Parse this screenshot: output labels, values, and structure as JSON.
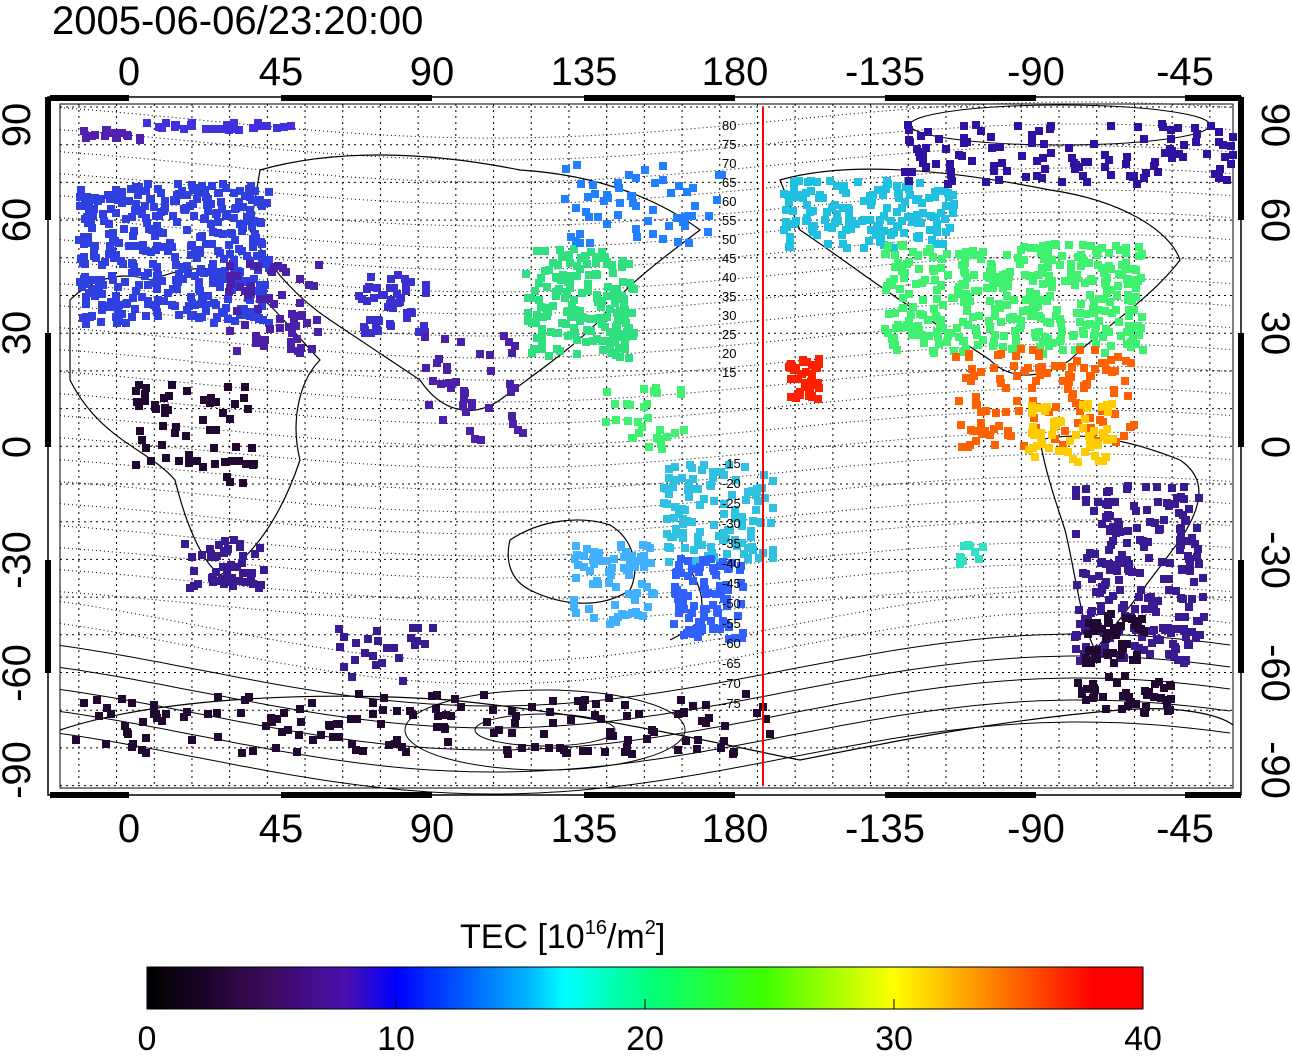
{
  "timestamp": "2005-06-06/23:20:00",
  "map": {
    "top_lon_ticks": [
      "0",
      "45",
      "90",
      "135",
      "180",
      "-135",
      "-90",
      "-45"
    ],
    "bottom_lon_ticks": [
      "0",
      "45",
      "90",
      "135",
      "180",
      "-135",
      "-90",
      "-45"
    ],
    "left_lat_ticks": [
      "90",
      "60",
      "30",
      "0",
      "-30",
      "-60",
      "-90"
    ],
    "right_lat_ticks": [
      "90",
      "60",
      "30",
      "0",
      "-30",
      "-60",
      "-90"
    ],
    "contour_labels_north": [
      "80",
      "75",
      "70",
      "65",
      "60",
      "55",
      "50",
      "45",
      "40",
      "35",
      "30",
      "25",
      "20",
      "15"
    ],
    "contour_labels_south": [
      "-15",
      "-20",
      "-25",
      "-30",
      "-35",
      "-40",
      "-45",
      "-50",
      "-55",
      "-60",
      "-65",
      "-70",
      "-75"
    ],
    "reference_line_color": "#ff0000"
  },
  "colorbar": {
    "label": "TEC  [10",
    "label_sup": "16",
    "label_unit": "/m",
    "label_sup2": "2",
    "label_end": "]",
    "min": 0,
    "max": 40,
    "ticks": [
      "0",
      "10",
      "20",
      "30",
      "40"
    ],
    "colormap": "jet-like: black → purple → blue → cyan → green → yellow → orange → red"
  }
}
